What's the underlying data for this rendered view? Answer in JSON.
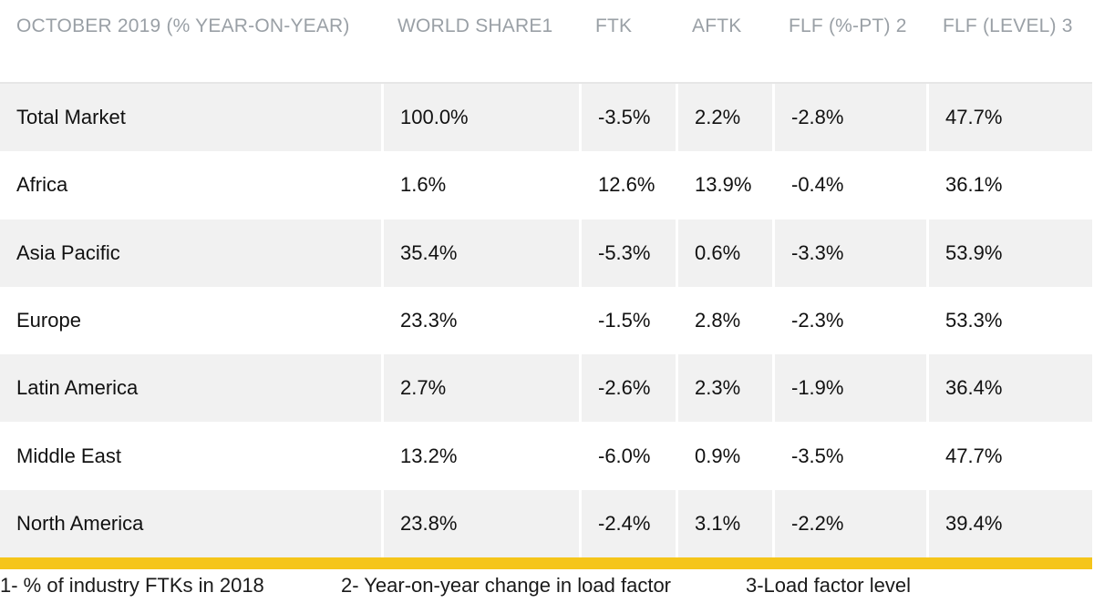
{
  "table": {
    "headers": [
      "OCTOBER 2019 (% YEAR-ON-YEAR)",
      "WORLD SHARE1",
      "FTK",
      "AFTK",
      "FLF (%-PT) 2",
      "FLF (LEVEL) 3"
    ],
    "rows": [
      {
        "region": "Total Market",
        "share": "100.0%",
        "ftk": "-3.5%",
        "aftk": "2.2%",
        "flf_pt": "-2.8%",
        "flf_level": "47.7%"
      },
      {
        "region": "Africa",
        "share": "1.6%",
        "ftk": "12.6%",
        "aftk": "13.9%",
        "flf_pt": "-0.4%",
        "flf_level": "36.1%"
      },
      {
        "region": "Asia Pacific",
        "share": "35.4%",
        "ftk": "-5.3%",
        "aftk": "0.6%",
        "flf_pt": "-3.3%",
        "flf_level": "53.9%"
      },
      {
        "region": "Europe",
        "share": "23.3%",
        "ftk": "-1.5%",
        "aftk": "2.8%",
        "flf_pt": "-2.3%",
        "flf_level": "53.3%"
      },
      {
        "region": "Latin America",
        "share": "2.7%",
        "ftk": "-2.6%",
        "aftk": "2.3%",
        "flf_pt": "-1.9%",
        "flf_level": "36.4%"
      },
      {
        "region": "Middle East",
        "share": "13.2%",
        "ftk": "-6.0%",
        "aftk": "0.9%",
        "flf_pt": "-3.5%",
        "flf_level": "47.7%"
      },
      {
        "region": "North America",
        "share": "23.8%",
        "ftk": "-2.4%",
        "aftk": "3.1%",
        "flf_pt": "-2.2%",
        "flf_level": "39.4%"
      }
    ]
  },
  "footnotes": [
    "1- % of industry FTKs in 2018",
    "2- Year-on-year change in load factor",
    "3-Load factor level"
  ],
  "colors": {
    "header_text": "#9aa0a6",
    "row_shade": "#f1f1f1",
    "accent_bar": "#f5c51a"
  }
}
